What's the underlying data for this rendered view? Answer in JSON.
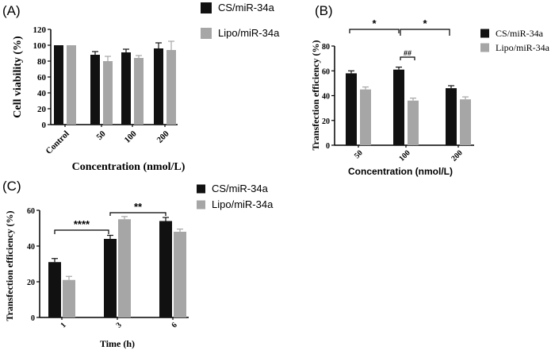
{
  "colors": {
    "series_a": "#111111",
    "series_b": "#a6a6a6",
    "axis": "#000000"
  },
  "chart_data": [
    {
      "panel": "(A)",
      "type": "bar",
      "title": "",
      "xlabel": "Concentration (nmol/L)",
      "ylabel": "Cell viability (%)",
      "ylim": [
        0,
        120
      ],
      "yticks": [
        0,
        20,
        40,
        60,
        80,
        100,
        120
      ],
      "categories": [
        "Control",
        "50",
        "100",
        "200"
      ],
      "series": [
        {
          "name": "CS/miR-34a",
          "values": [
            100,
            88,
            91,
            96
          ],
          "errors": [
            0,
            4,
            4,
            7
          ]
        },
        {
          "name": "Lipo/miR-34a",
          "values": [
            100,
            80,
            84,
            94
          ],
          "errors": [
            0,
            6,
            3,
            11
          ]
        }
      ],
      "annotations": []
    },
    {
      "panel": "(B)",
      "type": "bar",
      "title": "",
      "xlabel": "Concentration (nmol/L)",
      "ylabel": "Transfection efficiency (%)",
      "ylim": [
        0,
        80
      ],
      "yticks": [
        0,
        20,
        40,
        60,
        80
      ],
      "categories": [
        "50",
        "100",
        "200"
      ],
      "series": [
        {
          "name": "CS/miR-34a",
          "values": [
            58,
            61,
            46
          ],
          "errors": [
            2,
            2,
            2
          ]
        },
        {
          "name": "Lipo/miR-34a",
          "values": [
            45,
            36,
            37
          ],
          "errors": [
            2,
            2,
            2
          ]
        }
      ],
      "annotations": [
        {
          "label": "*",
          "from": "50 CS/miR-34a",
          "to": "100 CS/miR-34a"
        },
        {
          "label": "*",
          "from": "100 CS/miR-34a",
          "to": "200 CS/miR-34a"
        },
        {
          "label": "##",
          "from": "100 CS/miR-34a",
          "to": "100 Lipo/miR-34a"
        }
      ]
    },
    {
      "panel": "(C)",
      "type": "bar",
      "title": "",
      "xlabel": "Time (h)",
      "ylabel": "Transfection efficiency (%)",
      "ylim": [
        0,
        60
      ],
      "yticks": [
        0,
        20,
        40,
        60
      ],
      "categories": [
        "1",
        "3",
        "6"
      ],
      "series": [
        {
          "name": "CS/miR-34a",
          "values": [
            31,
            44,
            54
          ],
          "errors": [
            2,
            2,
            2
          ]
        },
        {
          "name": "Lipo/miR-34a",
          "values": [
            21,
            55,
            48
          ],
          "errors": [
            2,
            1.5,
            1.5
          ]
        }
      ],
      "annotations": [
        {
          "label": "****",
          "from": "1 CS/miR-34a",
          "to": "3 CS/miR-34a"
        },
        {
          "label": "**",
          "from": "3 CS/miR-34a",
          "to": "6 CS/miR-34a"
        }
      ]
    }
  ]
}
